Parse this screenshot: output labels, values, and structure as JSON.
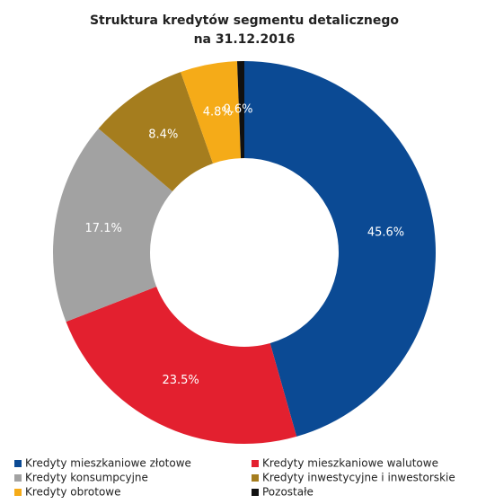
{
  "chart_data": {
    "type": "donut",
    "title": [
      "Struktura kredytów segmentu detalicznego",
      "na 31.12.2016"
    ],
    "categories": [
      "Kredyty mieszkaniowe złotowe",
      "Kredyty mieszkaniowe walutowe",
      "Kredyty konsumpcyjne",
      "Kredyty inwestycyjne i inwestorskie",
      "Kredyty obrotowe",
      "Pozostałe"
    ],
    "values": [
      45.6,
      23.5,
      17.1,
      8.4,
      4.8,
      0.6
    ],
    "value_labels": [
      "45.6%",
      "23.5%",
      "17.1%",
      "8.4%",
      "4.8%",
      "0.6%"
    ],
    "colors": [
      "#0b4a94",
      "#e3202f",
      "#a2a2a2",
      "#a57d1e",
      "#f5ab18",
      "#111111"
    ],
    "legend": "bottom"
  }
}
